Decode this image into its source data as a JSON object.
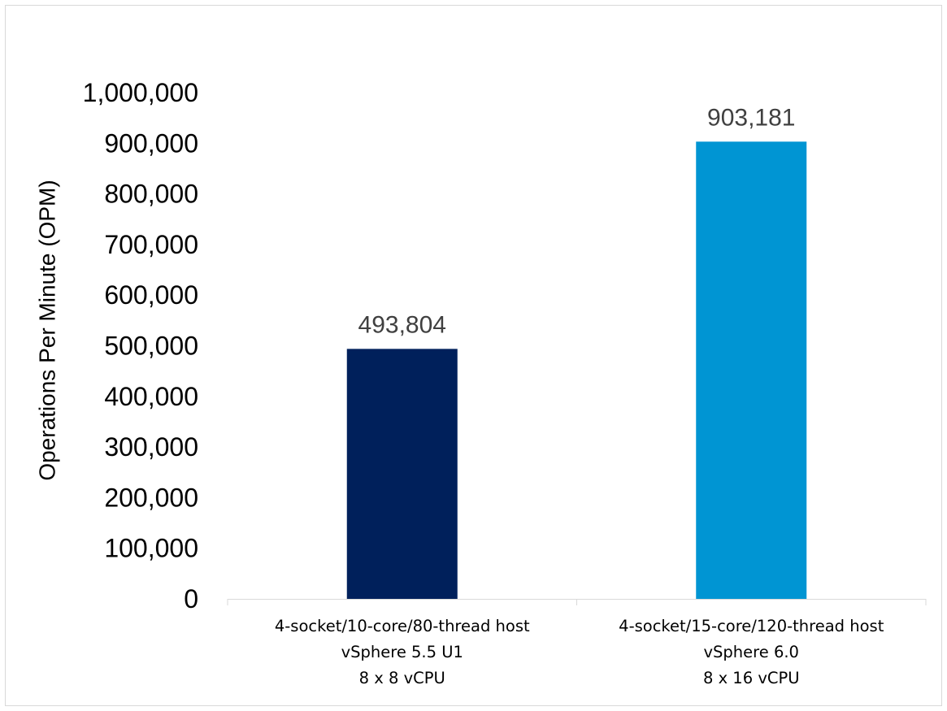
{
  "chart_data": {
    "type": "bar",
    "title": "",
    "xlabel": "",
    "ylabel": "Operations Per Minute (OPM)",
    "ylim": [
      0,
      1000000
    ],
    "y_ticks": [
      0,
      100000,
      200000,
      300000,
      400000,
      500000,
      600000,
      700000,
      800000,
      900000,
      1000000
    ],
    "y_tick_labels": [
      "0",
      "100,000",
      "200,000",
      "300,000",
      "400,000",
      "500,000",
      "600,000",
      "700,000",
      "800,000",
      "900,000",
      "1,000,000"
    ],
    "categories": [
      [
        "4-socket/10-core/80-thread host",
        "vSphere 5.5 U1",
        "8 x 8 vCPU"
      ],
      [
        "4-socket/15-core/120-thread host",
        "vSphere 6.0",
        "8 x 16 vCPU"
      ]
    ],
    "values": [
      493804,
      903181
    ],
    "data_labels": [
      "493,804",
      "903,181"
    ],
    "bar_colors": [
      "#00205b",
      "#0095d3"
    ],
    "grid": false,
    "legend": "none"
  }
}
